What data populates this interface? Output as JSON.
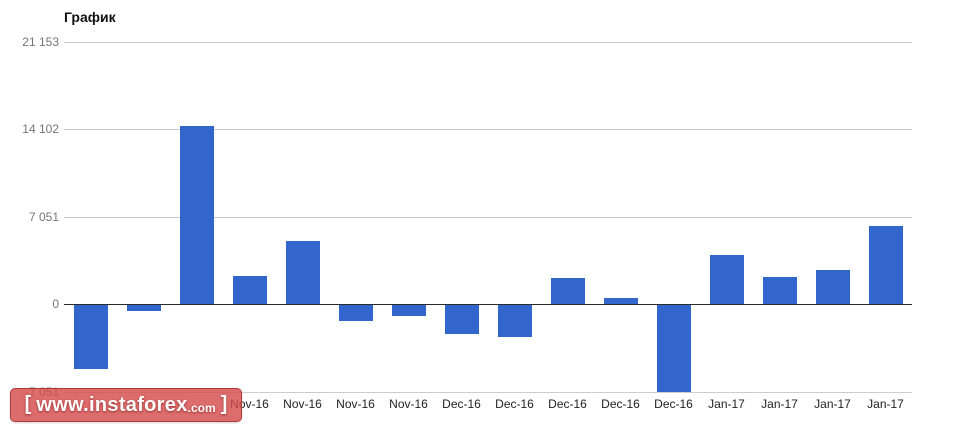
{
  "chart_data": {
    "type": "bar",
    "title": "График",
    "categories": [
      "",
      "",
      "",
      "Nov-16",
      "Nov-16",
      "Nov-16",
      "Nov-16",
      "Dec-16",
      "Dec-16",
      "Dec-16",
      "Dec-16",
      "Dec-16",
      "Jan-17",
      "Jan-17",
      "Jan-17",
      "Jan-17"
    ],
    "values": [
      -5200,
      -480,
      14390,
      2330,
      5150,
      -1290,
      -890,
      -2330,
      -2580,
      2170,
      530,
      -7000,
      4030,
      2250,
      2820,
      6360
    ],
    "y_ticks": [
      {
        "label": "21 153",
        "value": 21153
      },
      {
        "label": "14 102",
        "value": 14102
      },
      {
        "label": "7 051",
        "value": 7051
      },
      {
        "label": "0",
        "value": 0
      },
      {
        "label": "-7 051",
        "value": -7051
      }
    ],
    "ylim": [
      -7051,
      21153
    ],
    "xlabel": "",
    "ylabel": "",
    "grid": true,
    "legend": "none",
    "colors": {
      "bar": "#3366cc",
      "grid": "#cccccc",
      "zero_line": "#2a2a2a",
      "y_label": "#757575",
      "x_label": "#222222",
      "title": "#111111"
    }
  },
  "watermark": {
    "bracket_left": "[",
    "domain": "www.instaforex",
    "tld": ".com",
    "bracket_right": "]",
    "background": "#d64c4c"
  }
}
